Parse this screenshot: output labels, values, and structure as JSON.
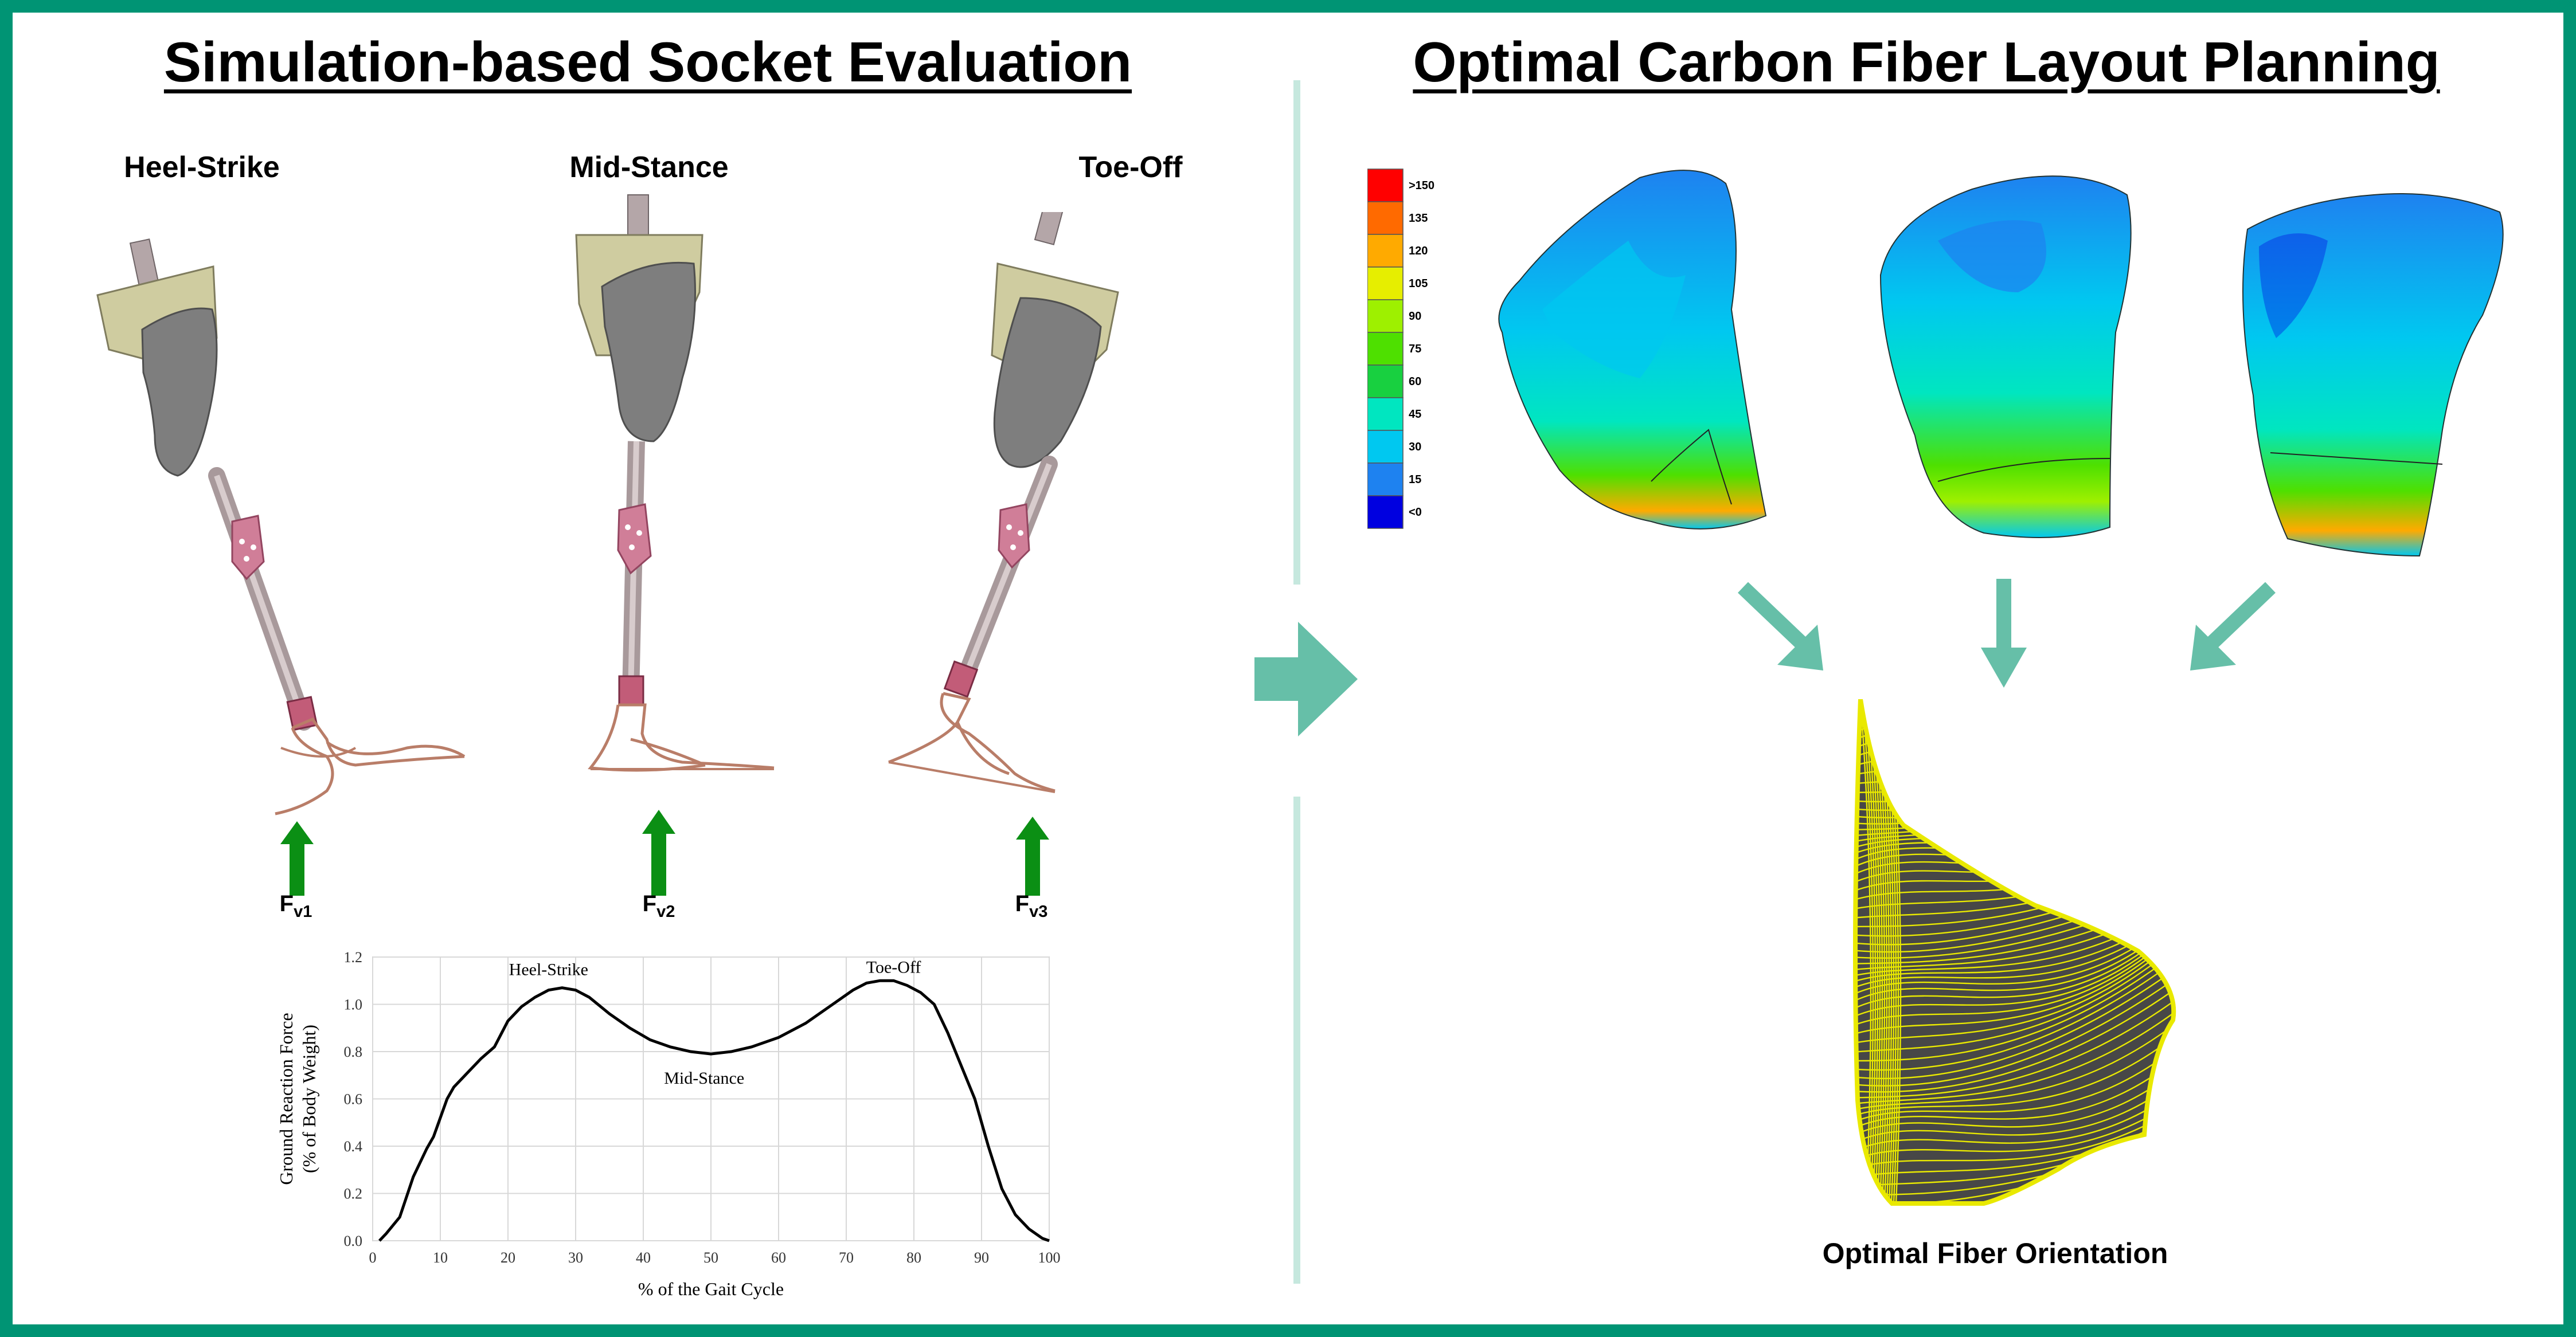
{
  "left_panel": {
    "title": "Simulation-based Socket Evaluation",
    "phases": [
      "Heel-Strike",
      "Mid-Stance",
      "Toe-Off"
    ],
    "forces": [
      {
        "symbol": "F",
        "subscript": "v1"
      },
      {
        "symbol": "F",
        "subscript": "v2"
      },
      {
        "symbol": "F",
        "subscript": "v3"
      }
    ]
  },
  "right_panel": {
    "title": "Optimal Carbon Fiber Layout Planning",
    "colorbar_labels": [
      ">150",
      "135",
      "120",
      "105",
      "90",
      "75",
      "60",
      "45",
      "30",
      "15",
      "<0"
    ],
    "colorbar_colors": [
      "#ff0000",
      "#ff6a00",
      "#ffaa00",
      "#e6ee00",
      "#9ef000",
      "#4ee000",
      "#18d040",
      "#00e6c0",
      "#00c8f0",
      "#1e82f0",
      "#0000e0"
    ],
    "fiber_caption": "Optimal Fiber Orientation"
  },
  "colors": {
    "border": "#009474",
    "arrow_green": "#0b8f14",
    "teal_arrow": "#66bfa8",
    "divider": "#c6e8de"
  },
  "chart_data": {
    "type": "line",
    "title": "",
    "xlabel": "% of the Gait Cycle",
    "ylabel": "Ground Reaction Force",
    "ylabel2": "(% of Body Weight)",
    "xlim": [
      0,
      100
    ],
    "ylim": [
      0,
      1.2
    ],
    "xticks": [
      0,
      10,
      20,
      30,
      40,
      50,
      60,
      70,
      80,
      90,
      100
    ],
    "yticks": [
      "0.0",
      "0.2",
      "0.4",
      "0.6",
      "0.8",
      "1.0",
      "1.2"
    ],
    "grid": true,
    "annotations": [
      "Heel-Strike",
      "Mid-Stance",
      "Toe-Off"
    ],
    "series": [
      {
        "x": [
          1,
          2,
          4,
          6,
          8,
          9,
          10,
          11,
          12,
          14,
          16,
          18,
          20,
          22,
          24,
          26,
          28,
          30,
          32,
          35,
          38,
          41,
          44,
          47,
          50,
          53,
          56,
          60,
          64,
          68,
          71,
          73,
          75,
          77,
          79,
          81,
          83,
          85,
          87,
          89,
          91,
          93,
          95,
          97,
          99,
          100
        ],
        "values": [
          0.0,
          0.03,
          0.1,
          0.27,
          0.39,
          0.44,
          0.52,
          0.6,
          0.65,
          0.71,
          0.77,
          0.82,
          0.93,
          0.99,
          1.03,
          1.06,
          1.07,
          1.06,
          1.03,
          0.96,
          0.9,
          0.85,
          0.82,
          0.8,
          0.79,
          0.8,
          0.82,
          0.86,
          0.92,
          1.0,
          1.06,
          1.09,
          1.1,
          1.1,
          1.08,
          1.05,
          1.0,
          0.88,
          0.74,
          0.6,
          0.4,
          0.22,
          0.11,
          0.05,
          0.01,
          0.0
        ]
      }
    ]
  }
}
